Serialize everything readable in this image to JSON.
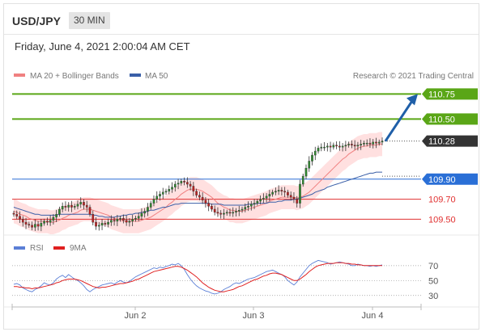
{
  "header": {
    "symbol": "USD/JPY",
    "interval": "30 MIN",
    "timestamp": "Friday, June 4, 2021 2:00:04 AM CET"
  },
  "legend": {
    "ma20_label": "MA 20 + Bollinger Bands",
    "ma50_label": "MA 50",
    "copyright": "Research © 2021 Trading Central",
    "rsi_label": "RSI",
    "ma9_label": "9MA"
  },
  "colors": {
    "target_green": "#5aa617",
    "resistance_blue": "#2a6fd6",
    "support_red": "#e03030",
    "current_price_bg": "#333333",
    "arrow_blue": "#1f5fa8",
    "bollinger_fill": "#ffd6d6",
    "ma20_line": "#f08080",
    "ma50_line": "#3a5fa8",
    "rsi_line": "#5b7fd6",
    "rsi_ma_line": "#e02020",
    "candle_up": "#2e8b2e",
    "candle_down": "#c02020"
  },
  "chart_data": [
    {
      "type": "candlestick",
      "title": "USD/JPY",
      "timeframe": "30 MIN",
      "x_tick_labels": [
        "Jun 2",
        "Jun 3",
        "Jun 4"
      ],
      "ylim": [
        109.35,
        110.85
      ],
      "price_levels": [
        {
          "value": 110.75,
          "label": "110.75",
          "role": "target"
        },
        {
          "value": 110.5,
          "label": "110.50",
          "role": "target"
        },
        {
          "value": 110.28,
          "label": "110.28",
          "role": "current price"
        },
        {
          "value": 109.9,
          "label": "109.90",
          "role": "pivot"
        },
        {
          "value": 109.7,
          "label": "109.70",
          "role": "support"
        },
        {
          "value": 109.5,
          "label": "109.50",
          "role": "support"
        }
      ],
      "arrow": {
        "from": 110.28,
        "to": 110.75,
        "direction": "up"
      },
      "close": [
        109.55,
        109.53,
        109.5,
        109.47,
        109.45,
        109.44,
        109.42,
        109.45,
        109.43,
        109.46,
        109.48,
        109.47,
        109.49,
        109.52,
        109.55,
        109.6,
        109.63,
        109.62,
        109.64,
        109.62,
        109.63,
        109.65,
        109.67,
        109.64,
        109.62,
        109.55,
        109.47,
        109.43,
        109.44,
        109.46,
        109.45,
        109.47,
        109.49,
        109.48,
        109.5,
        109.51,
        109.49,
        109.47,
        109.48,
        109.5,
        109.51,
        109.53,
        109.56,
        109.58,
        109.62,
        109.66,
        109.7,
        109.73,
        109.75,
        109.77,
        109.78,
        109.8,
        109.82,
        109.85,
        109.86,
        109.88,
        109.87,
        109.85,
        109.83,
        109.78,
        109.74,
        109.72,
        109.69,
        109.66,
        109.63,
        109.6,
        109.57,
        109.56,
        109.55,
        109.56,
        109.57,
        109.56,
        109.57,
        109.58,
        109.59,
        109.6,
        109.62,
        109.63,
        109.65,
        109.66,
        109.68,
        109.7,
        109.71,
        109.73,
        109.75,
        109.77,
        109.78,
        109.79,
        109.78,
        109.77,
        109.74,
        109.72,
        109.7,
        109.66,
        109.85,
        109.93,
        110.01,
        110.08,
        110.14,
        110.18,
        110.21,
        110.22,
        110.22,
        110.23,
        110.22,
        110.24,
        110.23,
        110.22,
        110.23,
        110.24,
        110.25,
        110.24,
        110.23,
        110.24,
        110.25,
        110.26,
        110.26,
        110.25,
        110.27,
        110.26,
        110.27,
        110.28
      ],
      "ma20": [
        109.58,
        109.57,
        109.55,
        109.54,
        109.53,
        109.51,
        109.5,
        109.49,
        109.48,
        109.48,
        109.48,
        109.48,
        109.47,
        109.47,
        109.48,
        109.49,
        109.51,
        109.52,
        109.54,
        109.55,
        109.56,
        109.57,
        109.59,
        109.6,
        109.6,
        109.6,
        109.59,
        109.58,
        109.57,
        109.56,
        109.55,
        109.54,
        109.52,
        109.51,
        109.5,
        109.49,
        109.48,
        109.48,
        109.48,
        109.48,
        109.48,
        109.48,
        109.49,
        109.5,
        109.51,
        109.52,
        109.54,
        109.56,
        109.58,
        109.6,
        109.62,
        109.65,
        109.67,
        109.7,
        109.72,
        109.75,
        109.77,
        109.79,
        109.8,
        109.8,
        109.8,
        109.79,
        109.78,
        109.76,
        109.74,
        109.72,
        109.69,
        109.66,
        109.64,
        109.62,
        109.61,
        109.59,
        109.59,
        109.58,
        109.58,
        109.58,
        109.59,
        109.6,
        109.61,
        109.62,
        109.63,
        109.64,
        109.65,
        109.66,
        109.68,
        109.69,
        109.7,
        109.71,
        109.72,
        109.72,
        109.72,
        109.72,
        109.72,
        109.71,
        109.72,
        109.73,
        109.75,
        109.77,
        109.8,
        109.83,
        109.86,
        109.89,
        109.92,
        109.95,
        109.98,
        110.01,
        110.04,
        110.07,
        110.1,
        110.12,
        110.15,
        110.17,
        110.19,
        110.21,
        110.22,
        110.23,
        110.23,
        110.24,
        110.24,
        110.24,
        110.25,
        110.25
      ],
      "ma50": [
        109.62,
        109.61,
        109.6,
        109.59,
        109.58,
        109.57,
        109.56,
        109.55,
        109.55,
        109.54,
        109.54,
        109.54,
        109.54,
        109.54,
        109.54,
        109.55,
        109.55,
        109.55,
        109.55,
        109.55,
        109.55,
        109.55,
        109.55,
        109.55,
        109.55,
        109.55,
        109.54,
        109.54,
        109.53,
        109.53,
        109.52,
        109.52,
        109.52,
        109.52,
        109.53,
        109.53,
        109.54,
        109.54,
        109.55,
        109.55,
        109.56,
        109.56,
        109.57,
        109.57,
        109.58,
        109.59,
        109.59,
        109.6,
        109.61,
        109.62,
        109.62,
        109.63,
        109.64,
        109.65,
        109.65,
        109.66,
        109.66,
        109.66,
        109.66,
        109.66,
        109.66,
        109.66,
        109.66,
        109.66,
        109.66,
        109.65,
        109.65,
        109.65,
        109.65,
        109.64,
        109.64,
        109.64,
        109.64,
        109.64,
        109.64,
        109.64,
        109.64,
        109.65,
        109.65,
        109.65,
        109.66,
        109.66,
        109.66,
        109.66,
        109.67,
        109.67,
        109.67,
        109.68,
        109.68,
        109.69,
        109.69,
        109.69,
        109.7,
        109.7,
        109.71,
        109.72,
        109.73,
        109.74,
        109.75,
        109.77,
        109.78,
        109.79,
        109.8,
        109.82,
        109.83,
        109.84,
        109.85,
        109.86,
        109.87,
        109.88,
        109.89,
        109.9,
        109.91,
        109.92,
        109.93,
        109.94,
        109.95,
        109.96,
        109.96,
        109.97,
        109.97,
        109.97
      ],
      "bollinger_width": 0.12
    },
    {
      "type": "line",
      "series_names": [
        "RSI",
        "9MA"
      ],
      "y_tick_labels": [
        "70",
        "50",
        "30"
      ],
      "ylim": [
        20,
        85
      ],
      "rsi": [
        45,
        46,
        44,
        40,
        38,
        36,
        35,
        38,
        40,
        43,
        47,
        45,
        44,
        47,
        52,
        55,
        57,
        54,
        58,
        55,
        52,
        50,
        47,
        43,
        38,
        35,
        38,
        40,
        42,
        44,
        45,
        46,
        47,
        45,
        48,
        50,
        48,
        47,
        49,
        52,
        55,
        57,
        59,
        61,
        63,
        65,
        67,
        66,
        68,
        67,
        69,
        70,
        72,
        71,
        73,
        70,
        65,
        58,
        52,
        47,
        43,
        40,
        38,
        36,
        35,
        33,
        32,
        33,
        35,
        38,
        40,
        42,
        45,
        47,
        46,
        48,
        50,
        52,
        53,
        54,
        56,
        58,
        60,
        62,
        63,
        64,
        62,
        60,
        58,
        55,
        50,
        47,
        44,
        48,
        55,
        60,
        65,
        70,
        73,
        75,
        77,
        76,
        75,
        74,
        72,
        73,
        74,
        75,
        74,
        73,
        72,
        70,
        70,
        72,
        71,
        70,
        70,
        69,
        70,
        69,
        70,
        71
      ],
      "rsi_ma9": [
        42,
        42,
        41,
        41,
        40,
        40,
        39,
        40,
        40,
        41,
        42,
        43,
        44,
        45,
        47,
        48,
        50,
        51,
        52,
        52,
        52,
        51,
        50,
        48,
        46,
        44,
        42,
        41,
        40,
        41,
        41,
        42,
        43,
        44,
        45,
        46,
        46,
        47,
        48,
        49,
        51,
        52,
        54,
        56,
        58,
        60,
        62,
        63,
        64,
        65,
        66,
        67,
        68,
        69,
        69,
        68,
        66,
        64,
        61,
        58,
        55,
        51,
        47,
        44,
        41,
        39,
        37,
        36,
        35,
        35,
        36,
        37,
        38,
        40,
        42,
        43,
        45,
        47,
        49,
        51,
        52,
        54,
        56,
        57,
        59,
        60,
        60,
        59,
        58,
        56,
        54,
        52,
        50,
        50,
        52,
        55,
        58,
        62,
        65,
        68,
        70,
        71,
        72,
        73,
        73,
        73,
        74,
        74,
        74,
        73,
        73,
        72,
        72,
        71,
        71,
        70,
        70,
        70,
        70,
        70,
        70,
        70
      ]
    }
  ]
}
